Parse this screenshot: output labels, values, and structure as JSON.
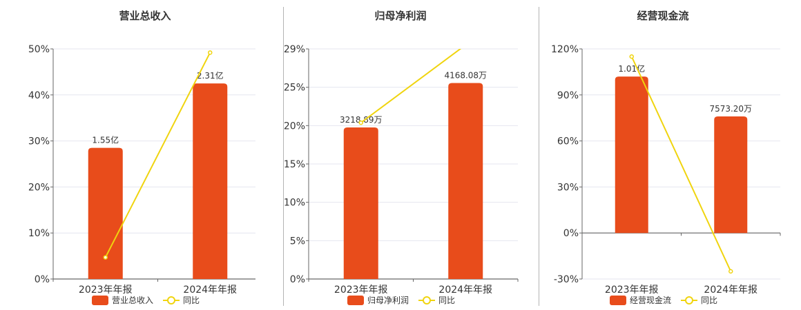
{
  "colors": {
    "bar": "#e84c1b",
    "line": "#f0d40e",
    "axis": "#666666",
    "grid": "#e4e6ef",
    "text": "#333333"
  },
  "legend": {
    "line_label": "同比"
  },
  "chart_data": [
    {
      "type": "bar",
      "title": "营业总收入",
      "categories": [
        "2023年年报",
        "2024年年报"
      ],
      "ylim": [
        0,
        50
      ],
      "yticks": [
        "0%",
        "10%",
        "20%",
        "30%",
        "40%",
        "50%"
      ],
      "series": [
        {
          "name": "营业总收入",
          "type": "bar",
          "values": [
            28.5,
            42.5
          ],
          "labels": [
            "1.55亿",
            "2.31亿"
          ]
        },
        {
          "name": "同比",
          "type": "line",
          "values": [
            4.7,
            49.2
          ]
        }
      ]
    },
    {
      "type": "bar",
      "title": "归母净利润",
      "categories": [
        "2023年年报",
        "2024年年报"
      ],
      "ylim": [
        0,
        29
      ],
      "yticks": [
        "0%",
        "5%",
        "10%",
        "15%",
        "20%",
        "25%",
        "29%"
      ],
      "series": [
        {
          "name": "归母净利润",
          "type": "bar",
          "values": [
            19.1,
            24.7
          ],
          "labels": [
            "3218.89万",
            "4168.08万"
          ]
        },
        {
          "name": "同比",
          "type": "line",
          "values": [
            19.7,
            29.5
          ]
        }
      ]
    },
    {
      "type": "bar",
      "title": "经营现金流",
      "categories": [
        "2023年年报",
        "2024年年报"
      ],
      "ylim": [
        -30,
        120
      ],
      "yticks": [
        "-30%",
        "0%",
        "30%",
        "60%",
        "90%",
        "120%"
      ],
      "series": [
        {
          "name": "经营现金流",
          "type": "bar",
          "values": [
            102,
            76
          ],
          "labels": [
            "1.01亿",
            "7573.20万"
          ]
        },
        {
          "name": "同比",
          "type": "line",
          "values": [
            115,
            -25
          ]
        }
      ]
    }
  ]
}
